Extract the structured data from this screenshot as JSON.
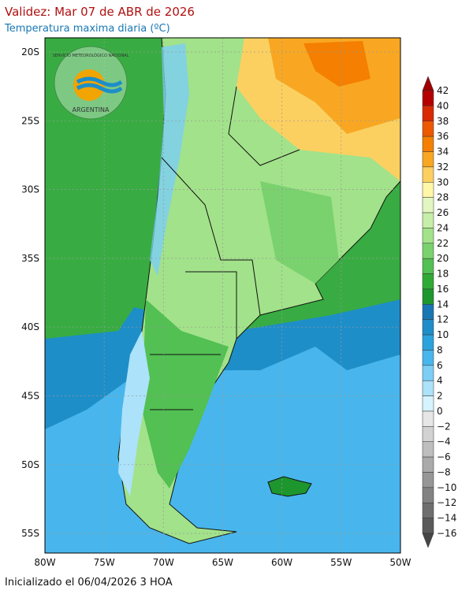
{
  "header": {
    "title": "Validez: Mar 07 de ABR de 2026",
    "subtitle": "Temperatura maxima diaria (ºC)"
  },
  "logo": {
    "top_text": "SERVICIO METEOROLÓGICO NACIONAL",
    "bottom_text": "ARGENTINA"
  },
  "map": {
    "lat_labels": [
      "20S",
      "25S",
      "30S",
      "35S",
      "40S",
      "45S",
      "50S",
      "55S"
    ],
    "lon_labels": [
      "80W",
      "75W",
      "70W",
      "65W",
      "60W",
      "55W",
      "50W"
    ]
  },
  "legend": {
    "labels": [
      "42",
      "40",
      "38",
      "36",
      "34",
      "32",
      "30",
      "28",
      "26",
      "24",
      "22",
      "20",
      "18",
      "16",
      "14",
      "12",
      "10",
      "8",
      "6",
      "4",
      "2",
      "0",
      "−2",
      "−4",
      "−6",
      "−8",
      "−10",
      "−12",
      "−14",
      "−16"
    ],
    "colors": [
      "#b40000",
      "#d82a05",
      "#ee5800",
      "#f57f00",
      "#f9a722",
      "#fcd060",
      "#fff7a8",
      "#e2f6c2",
      "#c6eea8",
      "#a2e28a",
      "#7ad26e",
      "#52c052",
      "#30aa34",
      "#1e962e",
      "#1a76b2",
      "#1e8ec8",
      "#2ba2dc",
      "#48b6ec",
      "#7ccef5",
      "#ace2fa",
      "#d6f4ff",
      "#e6e6e6",
      "#d2d2d2",
      "#bebebe",
      "#aaaaaa",
      "#969696",
      "#828282",
      "#6e6e6e",
      "#5a5a5a"
    ],
    "top_color": "#a00000",
    "bottom_color": "#464646"
  },
  "footer": "Inicializado el 06/04/2026 3 HOA"
}
